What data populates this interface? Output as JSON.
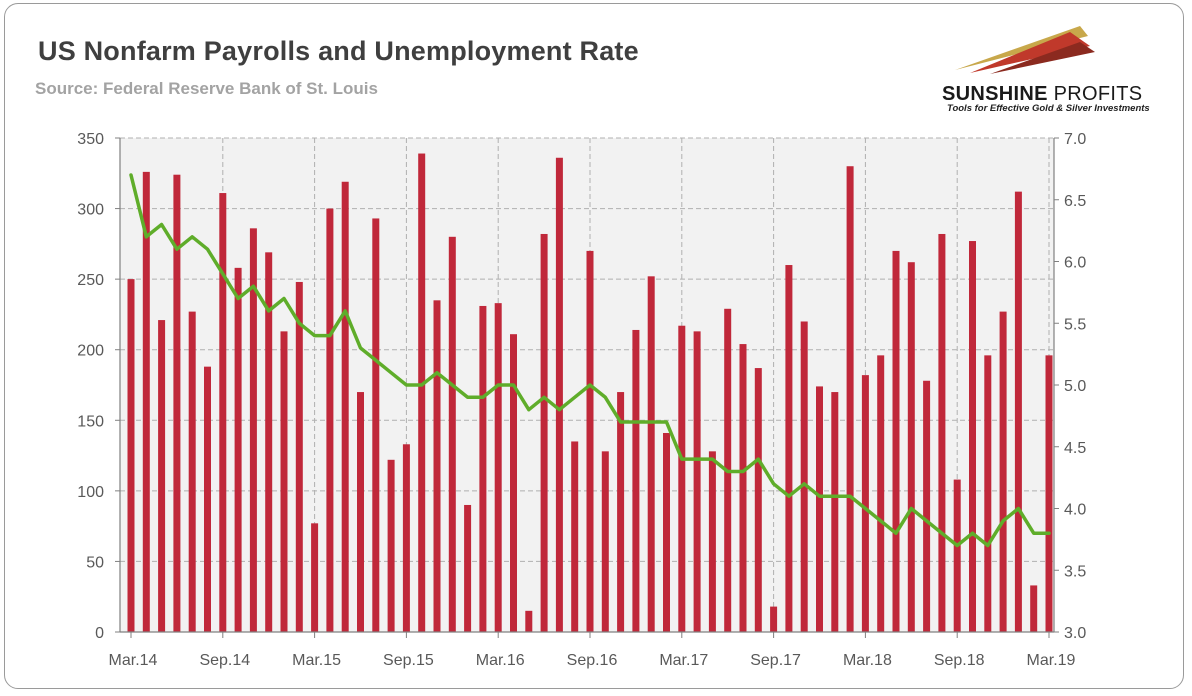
{
  "header": {
    "title": "US Nonfarm Payrolls and Unemployment Rate",
    "subtitle": "Source: Federal Reserve Bank of St. Louis"
  },
  "logo": {
    "name_part1": "SUNSHINE",
    "name_part2": " PROFITS",
    "tagline": "Tools for Effective Gold & Silver Investments",
    "colors": [
      "#c8a84b",
      "#c0392b",
      "#8b2a1f"
    ]
  },
  "colors": {
    "bars": "#c0283a",
    "line": "#5fad2a",
    "plot_background": "#f2f2f2",
    "grid": "#b0b0b0"
  },
  "chart_data": {
    "type": "bar",
    "title": "US Nonfarm Payrolls and Unemployment Rate",
    "xlabel": "",
    "ylabel": "",
    "y_left_ticks": [
      "350",
      "300",
      "250",
      "200",
      "150",
      "100",
      "50",
      "0"
    ],
    "y_right_ticks": [
      "7.0",
      "6.5",
      "6.0",
      "5.5",
      "5.0",
      "4.5",
      "4.0",
      "3.5",
      "3.0"
    ],
    "x_tick_labels": [
      "Mar.14",
      "Sep.14",
      "Mar.15",
      "Sep.15",
      "Mar.16",
      "Sep.16",
      "Mar.17",
      "Sep.17",
      "Mar.18",
      "Sep.18",
      "Mar.19"
    ],
    "ylim_left": [
      0,
      350
    ],
    "ylim_right": [
      3.0,
      7.0
    ],
    "grid": true,
    "legend": "none",
    "series": [
      {
        "type": "bar",
        "axis": "left",
        "values": [
          250,
          326,
          221,
          324,
          227,
          188,
          311,
          258,
          286,
          269,
          213,
          248,
          77,
          300,
          319,
          170,
          293,
          122,
          133,
          339,
          235,
          280,
          90,
          231,
          233,
          211,
          15,
          282,
          336,
          135,
          270,
          128,
          170,
          214,
          252,
          141,
          217,
          213,
          128,
          229,
          204,
          187,
          18,
          260,
          220,
          174,
          170,
          330,
          182,
          196,
          270,
          262,
          178,
          282,
          108,
          277,
          196,
          227,
          312,
          33,
          196
        ]
      },
      {
        "type": "line",
        "axis": "right",
        "values": [
          6.7,
          6.2,
          6.3,
          6.1,
          6.2,
          6.1,
          5.9,
          5.7,
          5.8,
          5.6,
          5.7,
          5.5,
          5.4,
          5.4,
          5.6,
          5.3,
          5.2,
          5.1,
          5.0,
          5.0,
          5.1,
          5.0,
          4.9,
          4.9,
          5.0,
          5.0,
          4.8,
          4.9,
          4.8,
          4.9,
          5.0,
          4.9,
          4.7,
          4.7,
          4.7,
          4.7,
          4.4,
          4.4,
          4.4,
          4.3,
          4.3,
          4.4,
          4.2,
          4.1,
          4.2,
          4.1,
          4.1,
          4.1,
          4.0,
          3.9,
          3.8,
          4.0,
          3.9,
          3.8,
          3.7,
          3.8,
          3.7,
          3.9,
          4.0,
          3.8,
          3.8
        ]
      }
    ]
  }
}
